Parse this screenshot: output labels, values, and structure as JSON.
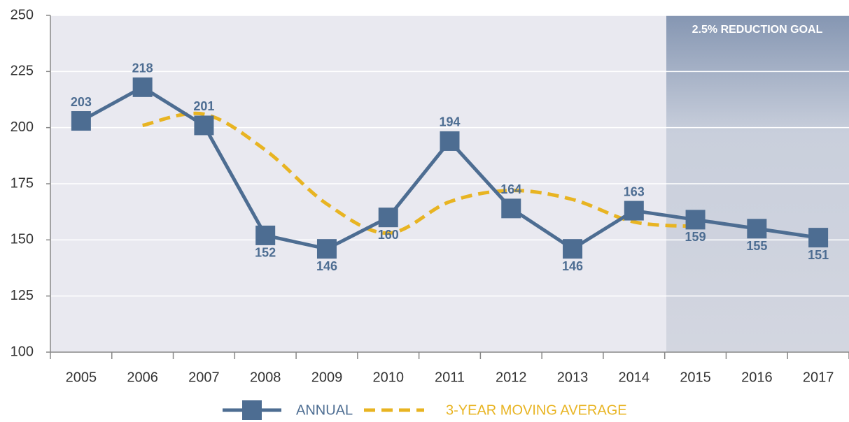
{
  "chart_data": {
    "type": "line",
    "categories": [
      "2005",
      "2006",
      "2007",
      "2008",
      "2009",
      "2010",
      "2011",
      "2012",
      "2013",
      "2014",
      "2015",
      "2016",
      "2017"
    ],
    "series": [
      {
        "name": "ANNUAL",
        "color": "#4d6d92",
        "values": [
          203,
          218,
          201,
          152,
          146,
          160,
          194,
          164,
          146,
          163,
          159,
          155,
          151
        ]
      },
      {
        "name": "3-YEAR MOVING AVERAGE",
        "color": "#e8b422",
        "values": [
          null,
          201,
          206,
          190,
          166,
          153,
          167,
          172,
          168,
          158,
          156,
          null,
          null
        ]
      }
    ],
    "annotation": "2.5% REDUCTION GOAL",
    "ylim": [
      100,
      250
    ],
    "yticks": [
      100,
      125,
      150,
      175,
      200,
      225,
      250
    ],
    "grid": true
  }
}
